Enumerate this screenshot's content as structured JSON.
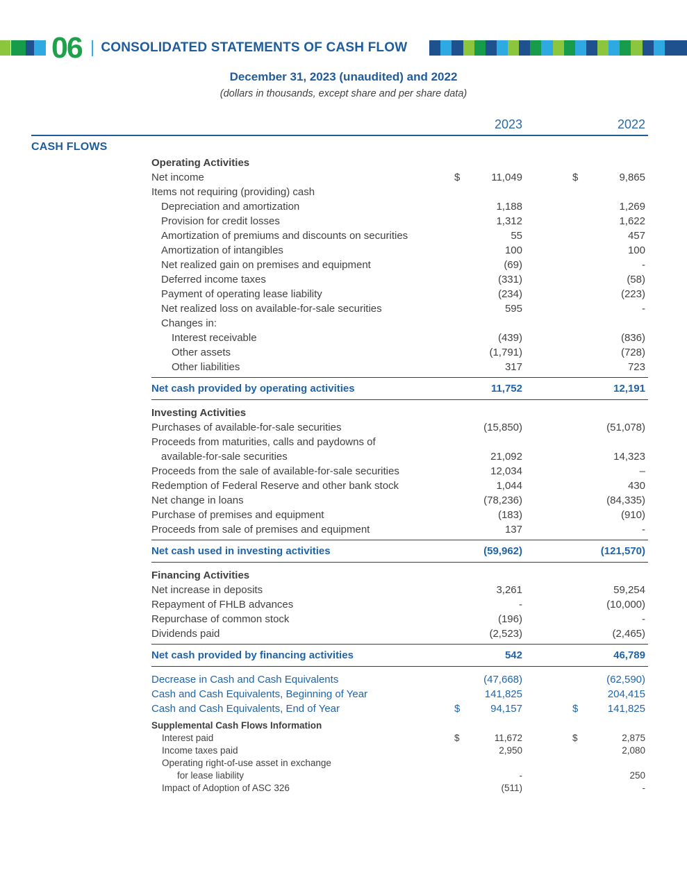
{
  "page": {
    "number": "06",
    "separator": "|",
    "title": "CONSOLIDATED STATEMENTS OF CASH FLOW",
    "subtitle": "December 31, 2023 (unaudited) and 2022",
    "subnote": "(dollars in thousands, except share and per share data)"
  },
  "colors": {
    "navy": "#1F518F",
    "lightBlue": "#2FA9E1",
    "lightGreen": "#8CC63F",
    "darkGreen": "#179C4C",
    "green": "#1FA14B",
    "headerBlue": "#1E5C9E",
    "tableBlue": "#2065A9",
    "bodyText": "#414042"
  },
  "decor": {
    "left_blocks": [
      "lightGreen",
      "darkGreen",
      "navy",
      "lightBlue"
    ],
    "right_blocks": [
      "navy",
      "lightBlue",
      "navy",
      "lightGreen",
      "darkGreen",
      "navy",
      "lightBlue",
      "lightGreen",
      "navy",
      "darkGreen",
      "lightBlue",
      "lightGreen",
      "darkGreen",
      "lightBlue",
      "navy",
      "lightGreen",
      "lightBlue",
      "darkGreen",
      "lightGreen",
      "navy",
      "lightBlue",
      "navy",
      "navy"
    ]
  },
  "table": {
    "section_label": "CASH FLOWS",
    "col_2023": "2023",
    "col_2022": "2022",
    "rows": [
      {
        "label": "Operating Activities",
        "style": "h"
      },
      {
        "label": "Net income",
        "dollar2023": "$",
        "value2023": "11,049",
        "dollar2022": "$",
        "value2022": "9,865"
      },
      {
        "label": "Items not requiring (providing) cash"
      },
      {
        "label": "Depreciation and amortization",
        "indent": 1,
        "value2023": "1,188",
        "value2022": "1,269"
      },
      {
        "label": "Provision for credit losses",
        "indent": 1,
        "value2023": "1,312",
        "value2022": "1,622"
      },
      {
        "label": "Amortization of premiums and discounts on securities",
        "indent": 1,
        "value2023": "55",
        "value2022": "457"
      },
      {
        "label": "Amortization of intangibles",
        "indent": 1,
        "value2023": "100",
        "value2022": "100"
      },
      {
        "label": "Net realized gain on premises and equipment",
        "indent": 1,
        "value2023": "(69)",
        "value2022": "-"
      },
      {
        "label": "Deferred income taxes",
        "indent": 1,
        "value2023": "(331)",
        "value2022": "(58)"
      },
      {
        "label": "Payment of operating lease liability",
        "indent": 1,
        "value2023": "(234)",
        "value2022": "(223)"
      },
      {
        "label": "Net realized loss on available-for-sale securities",
        "indent": 1,
        "value2023": "595",
        "value2022": "-"
      },
      {
        "label": "Changes in:",
        "indent": 1
      },
      {
        "label": "Interest receivable",
        "indent": 2,
        "value2023": "(439)",
        "value2022": "(836)"
      },
      {
        "label": "Other assets",
        "indent": 2,
        "value2023": "(1,791)",
        "value2022": "(728)"
      },
      {
        "label": "Other liabilities",
        "indent": 2,
        "value2023": "317",
        "value2022": "723"
      },
      {
        "label": "Net cash provided by operating activities",
        "style": "subtotal",
        "value2023": "11,752",
        "value2022": "12,191"
      },
      {
        "label": "Investing Activities",
        "style": "h"
      },
      {
        "label": "Purchases of available-for-sale securities",
        "value2023": "(15,850)",
        "value2022": "(51,078)"
      },
      {
        "label": "Proceeds from maturities, calls and paydowns of"
      },
      {
        "label": "available-for-sale securities",
        "indent": 1,
        "value2023": "21,092",
        "value2022": "14,323"
      },
      {
        "label": "Proceeds from the sale of available-for-sale securities",
        "value2023": "12,034",
        "value2022": "–"
      },
      {
        "label": "Redemption of Federal Reserve and other bank stock",
        "value2023": "1,044",
        "value2022": "430"
      },
      {
        "label": "Net change in loans",
        "value2023": "(78,236)",
        "value2022": "(84,335)"
      },
      {
        "label": "Purchase of premises and equipment",
        "value2023": "(183)",
        "value2022": "(910)"
      },
      {
        "label": "Proceeds from sale of premises and equipment",
        "value2023": "137",
        "value2022": "-"
      },
      {
        "label": "Net cash used in investing activities",
        "style": "subtotal",
        "value2023": "(59,962)",
        "value2022": "(121,570)"
      },
      {
        "label": "Financing Activities",
        "style": "h"
      },
      {
        "label": "Net increase in deposits",
        "value2023": "3,261",
        "value2022": "59,254"
      },
      {
        "label": "Repayment of FHLB advances",
        "value2023": "-",
        "value2022": "(10,000)"
      },
      {
        "label": "Repurchase of common stock",
        "value2023": "(196)",
        "value2022": "-"
      },
      {
        "label": "Dividends paid",
        "value2023": "(2,523)",
        "value2022": "(2,465)"
      },
      {
        "label": "Net cash provided by financing activities",
        "style": "subtotal",
        "value2023": "542",
        "value2022": "46,789"
      },
      {
        "label": "Decrease in Cash and Cash Equivalents",
        "style": "blue",
        "value2023": "(47,668)",
        "value2022": "(62,590)"
      },
      {
        "label": "Cash and Cash Equivalents, Beginning of Year",
        "style": "blue",
        "value2023": "141,825",
        "value2022": "204,415"
      },
      {
        "label": "Cash and Cash Equivalents, End of Year",
        "style": "blue",
        "dollar2023": "$",
        "value2023": "94,157",
        "dollar2022": "$",
        "value2022": "141,825"
      },
      {
        "label": "Supplemental Cash Flows Information",
        "style": "sup-heading"
      },
      {
        "label": "Interest paid",
        "style": "sup",
        "indent": 1,
        "dollar2023": "$",
        "value2023": "11,672",
        "dollar2022": "$",
        "value2022": "2,875"
      },
      {
        "label": "Income taxes paid",
        "style": "sup",
        "indent": 1,
        "value2023": "2,950",
        "value2022": "2,080"
      },
      {
        "label": "Operating right-of-use asset in exchange",
        "style": "sup",
        "indent": 1
      },
      {
        "label": "for lease liability",
        "style": "sup",
        "indent": 2,
        "value2023": "-",
        "value2022": "250"
      },
      {
        "label": "Impact of Adoption of ASC 326",
        "style": "sup",
        "indent": 1,
        "value2023": "(511)",
        "value2022": "-"
      }
    ]
  }
}
